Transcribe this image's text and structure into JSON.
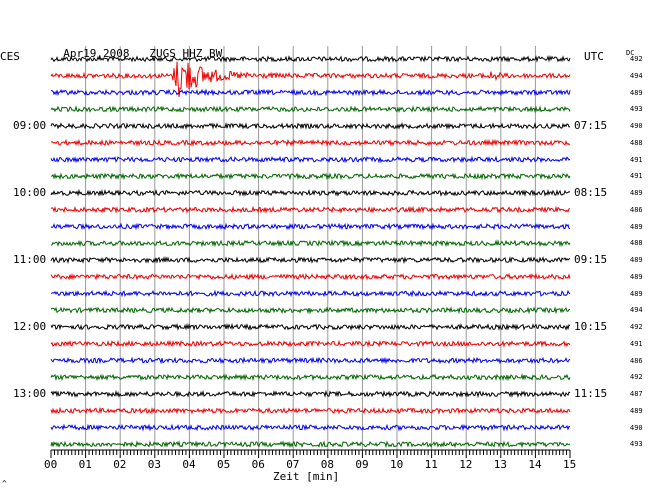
{
  "header": {
    "date": "Apr19,2008",
    "station": "ZUGS HHZ BW"
  },
  "chart_data": {
    "type": "line",
    "title": "Apr19,2008   ZUGS HHZ BW",
    "xlabel": "Zeit [min]",
    "x_ticks": [
      "00",
      "01",
      "02",
      "03",
      "04",
      "05",
      "06",
      "07",
      "08",
      "09",
      "10",
      "11",
      "12",
      "13",
      "14",
      "15"
    ],
    "xlim": [
      0,
      15
    ],
    "left_axis_label": "CES",
    "right_axis_label": "UTC",
    "dc_label": "DC",
    "left_times": [
      "09:00",
      "10:00",
      "11:00",
      "12:00",
      "13:00"
    ],
    "right_times": [
      "07:15",
      "08:15",
      "09:15",
      "10:15",
      "11:15"
    ],
    "trace_colors": [
      "#000000",
      "#ee0000",
      "#0000ee",
      "#006600"
    ],
    "dc_values": [
      "492",
      "494",
      "489",
      "493",
      "490",
      "488",
      "491",
      "491",
      "489",
      "486",
      "489",
      "488",
      "489",
      "489",
      "489",
      "494",
      "492",
      "491",
      "486",
      "492",
      "487",
      "489",
      "490",
      "493"
    ],
    "events": [
      {
        "trace": 1,
        "start_min": 3.5,
        "peak_min": 3.7,
        "end_min": 7.0,
        "type": "earthquake"
      },
      {
        "trace": 1,
        "start_min": 12.4,
        "peak_min": 12.8,
        "end_min": 13.1,
        "type": "small"
      }
    ]
  },
  "footer": {
    "corner_mark": "^"
  }
}
